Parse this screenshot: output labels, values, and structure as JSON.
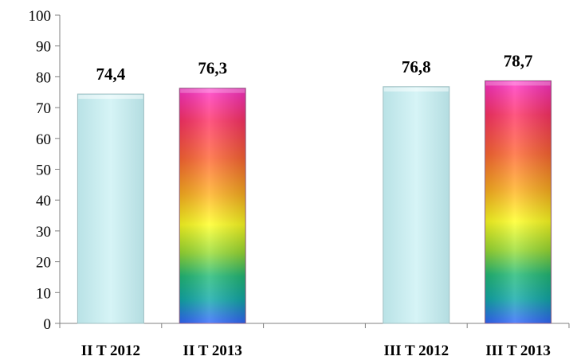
{
  "chart_data": {
    "type": "bar",
    "categories": [
      "II T 2012",
      "II T 2013",
      "",
      "III T 2012",
      "III T 2013"
    ],
    "values": [
      74.4,
      76.3,
      null,
      76.8,
      78.7
    ],
    "data_labels": [
      "74,4",
      "76,3",
      "",
      "76,8",
      "78,7"
    ],
    "yticks": [
      "0",
      "10",
      "20",
      "30",
      "40",
      "50",
      "60",
      "70",
      "80",
      "90",
      "100"
    ],
    "ylim": [
      0,
      100
    ],
    "grid": false,
    "legend": "none",
    "colors": {
      "plain_bar": "#c9eef0",
      "plain_bar_border": "#9fbfc2",
      "rainbow_top": "#ff33cc",
      "rainbow_bottom": "#3366ff"
    }
  }
}
